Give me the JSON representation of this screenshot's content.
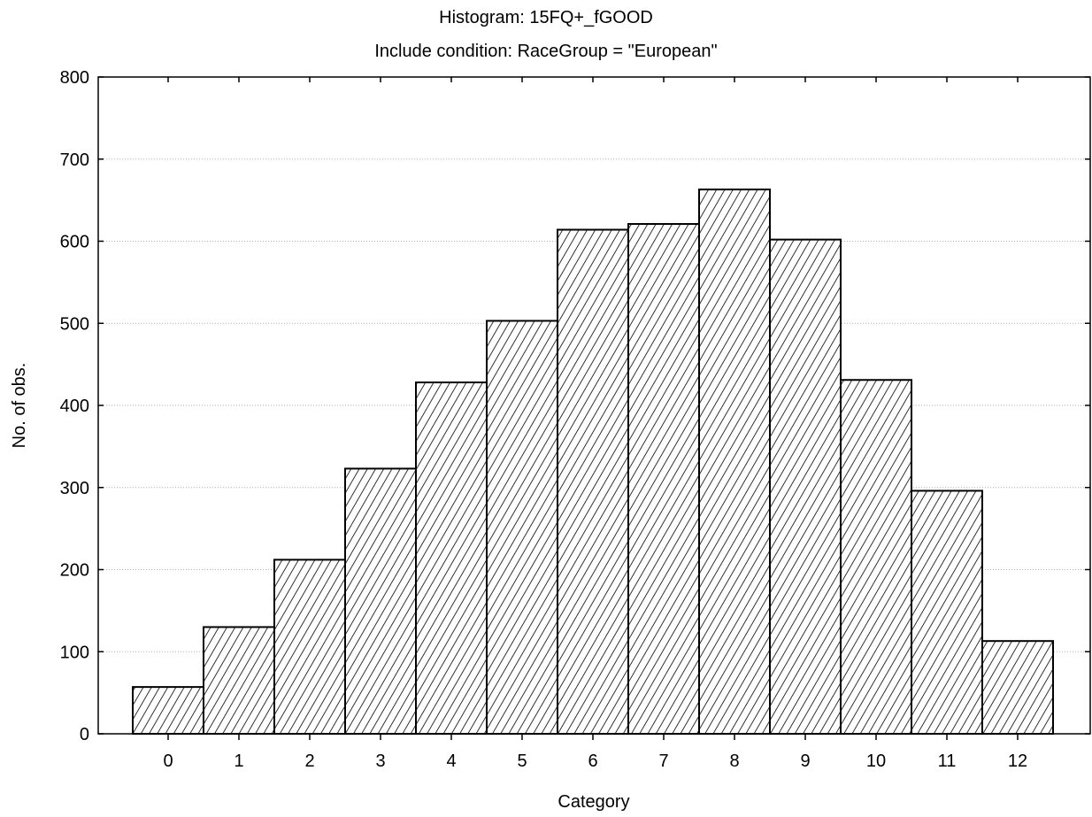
{
  "chart_data": {
    "type": "bar",
    "title": "Histogram: 15FQ+_fGOOD",
    "subtitle": "Include condition: RaceGroup = \"European\"",
    "xlabel": "Category",
    "ylabel": "No. of obs.",
    "categories": [
      "0",
      "1",
      "2",
      "3",
      "4",
      "5",
      "6",
      "7",
      "8",
      "9",
      "10",
      "11",
      "12"
    ],
    "values": [
      57,
      130,
      212,
      323,
      428,
      503,
      614,
      621,
      663,
      602,
      431,
      296,
      113
    ],
    "ylim": [
      0,
      800
    ],
    "yticks": [
      "0",
      "100",
      "200",
      "300",
      "400",
      "500",
      "600",
      "700",
      "800"
    ],
    "grid": true,
    "bar_fill": "diagonal-hatch",
    "colors": {
      "bar_stroke": "#000000",
      "hatch": "#000000",
      "grid": "#b0b0b0",
      "background": "#ffffff"
    }
  }
}
